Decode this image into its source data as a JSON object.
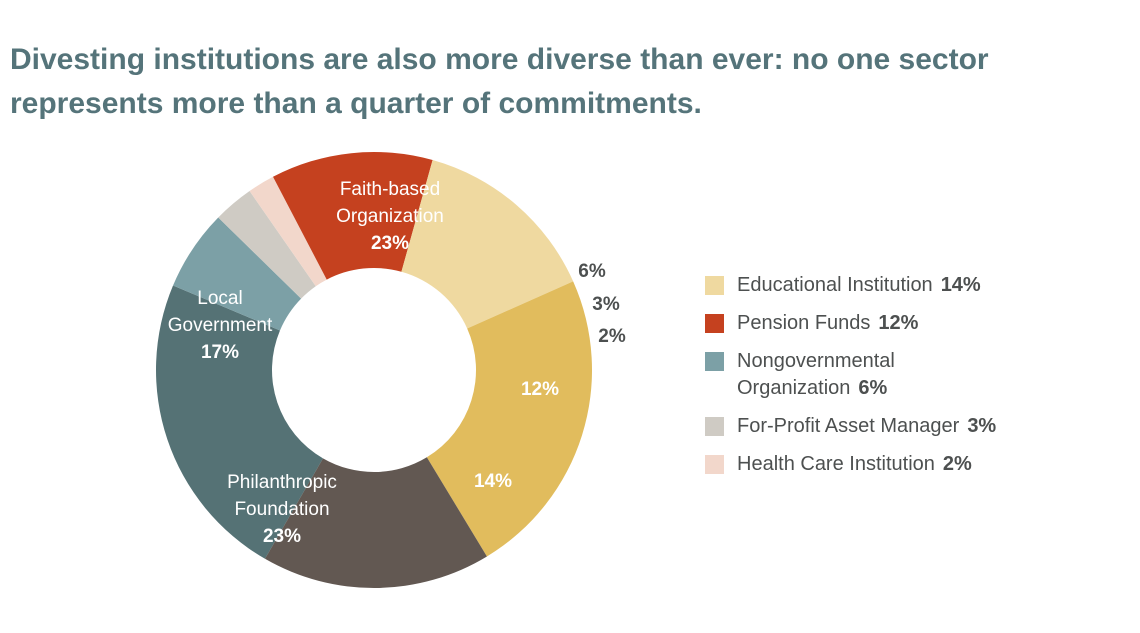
{
  "title": "Divesting institutions are also more diverse than ever: no one sector represents more than a quarter of commitments.",
  "chart_data": {
    "type": "pie",
    "donut": true,
    "legend_position": "right",
    "slices": [
      {
        "id": "faith",
        "value": 23,
        "label": "23%",
        "name_lines": [
          "Faith-based",
          "Organization"
        ],
        "color": "#557275",
        "label_color": "#ffffff",
        "label_placement": "inside"
      },
      {
        "id": "ngo",
        "value": 6,
        "label": "6%",
        "name": "Nongovernmental Organization",
        "color": "#7ca0a6",
        "label_placement": "outside"
      },
      {
        "id": "forprofit",
        "value": 3,
        "label": "3%",
        "name": "For-Profit Asset Manager",
        "color": "#cfcbc4",
        "label_placement": "outside"
      },
      {
        "id": "health",
        "value": 2,
        "label": "2%",
        "name": "Health Care Institution",
        "color": "#f2d7cb",
        "label_placement": "outside"
      },
      {
        "id": "pension",
        "value": 12,
        "label": "12%",
        "name": "Pension Funds",
        "color": "#c5411f",
        "label_color": "#ffffff",
        "label_placement": "inside"
      },
      {
        "id": "edu",
        "value": 14,
        "label": "14%",
        "name": "Educational Institution",
        "color": "#efd9a0",
        "label_color": "#ffffff",
        "label_placement": "inside"
      },
      {
        "id": "phil",
        "value": 23,
        "label": "23%",
        "name_lines": [
          "Philanthropic",
          "Foundation"
        ],
        "color": "#e1bc5d",
        "label_color": "#ffffff",
        "label_placement": "inside"
      },
      {
        "id": "local",
        "value": 17,
        "label": "17%",
        "name_lines": [
          "Local",
          "Government"
        ],
        "color": "#625852",
        "label_color": "#ffffff",
        "label_placement": "inside"
      }
    ],
    "legend": [
      {
        "slice": "edu",
        "name": "Educational Institution",
        "pct": "14%",
        "color": "#efd9a0"
      },
      {
        "slice": "pension",
        "name": "Pension Funds",
        "pct": "12%",
        "color": "#c5411f"
      },
      {
        "slice": "ngo",
        "name": "Nongovernmental Organization",
        "pct": "6%",
        "color": "#7ca0a6"
      },
      {
        "slice": "forprofit",
        "name": "For-Profit Asset Manager",
        "pct": "3%",
        "color": "#cfcbc4"
      },
      {
        "slice": "health",
        "name": "Health Care Institution",
        "pct": "2%",
        "color": "#f2d7cb"
      }
    ]
  }
}
